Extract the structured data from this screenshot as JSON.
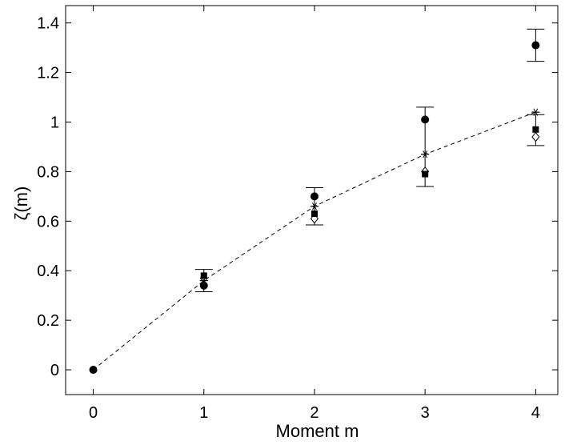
{
  "chart_data": {
    "type": "scatter",
    "title": "",
    "xlabel": "Moment m",
    "ylabel": "ζ(m)",
    "xlim": [
      -0.25,
      4.2
    ],
    "ylim": [
      -0.1,
      1.47
    ],
    "xticks": [
      0,
      1,
      2,
      3,
      4
    ],
    "yticks": [
      0,
      0.2,
      0.4,
      0.6,
      0.8,
      1,
      1.2,
      1.4
    ],
    "xtick_labels": [
      "0",
      "1",
      "2",
      "3",
      "4"
    ],
    "ytick_labels": [
      "0",
      "0.2",
      "0.4",
      "0.6",
      "0.8",
      "1",
      "1.2",
      "1.4"
    ],
    "grid": false,
    "legend": "none",
    "series": [
      {
        "marker": "circle-filled",
        "color": "#000000",
        "x": [
          0,
          1,
          2,
          3,
          4
        ],
        "y": [
          0,
          0.34,
          0.7,
          1.01,
          1.31
        ]
      },
      {
        "marker": "square-filled",
        "color": "#000000",
        "x": [
          1,
          2,
          3,
          4
        ],
        "y": [
          0.38,
          0.63,
          0.79,
          0.97
        ]
      },
      {
        "marker": "diamond-open",
        "color": "#000000",
        "x": [
          1,
          2,
          3,
          4
        ],
        "y": [
          0.37,
          0.61,
          0.8,
          0.94
        ]
      },
      {
        "marker": "asterisk",
        "color": "#000000",
        "x": [
          1,
          2,
          3,
          4
        ],
        "y": [
          0.36,
          0.66,
          0.87,
          1.04
        ]
      },
      {
        "style": "dashed-line",
        "color": "#000000",
        "x": [
          0,
          1,
          2,
          3,
          4
        ],
        "y": [
          0,
          0.36,
          0.66,
          0.87,
          1.04
        ]
      }
    ],
    "error_bars": [
      {
        "x": 1,
        "low": 0.315,
        "high": 0.405
      },
      {
        "x": 2,
        "low": 0.585,
        "high": 0.735
      },
      {
        "x": 3,
        "low": 0.74,
        "high": 1.06
      },
      {
        "x": 4,
        "low": 0.905,
        "high": 1.03
      },
      {
        "x": 4,
        "low": 1.245,
        "high": 1.375
      }
    ]
  }
}
